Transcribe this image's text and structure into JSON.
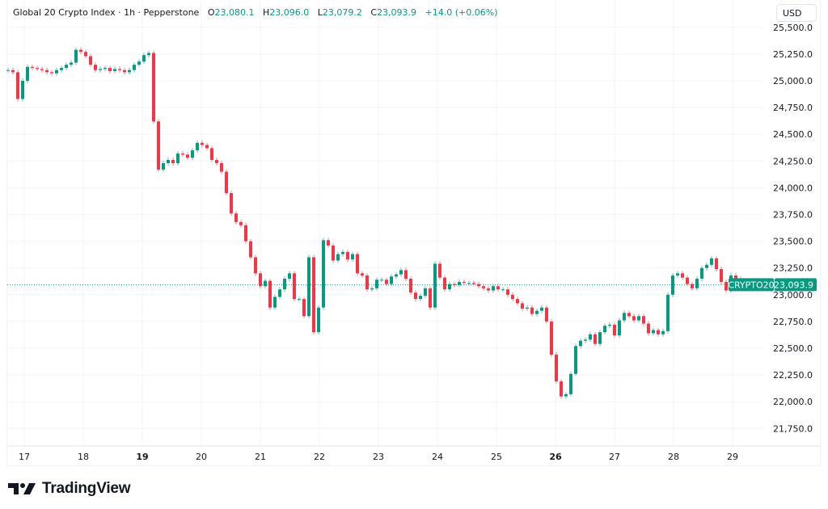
{
  "header": {
    "symbol_title": "Global 20 Crypto Index · 1h · Pepperstone",
    "open_label": "O",
    "open": "23,080.1",
    "high_label": "H",
    "high": "23,096.0",
    "low_label": "L",
    "low": "23,079.2",
    "close_label": "C",
    "close": "23,093.9",
    "change": "+14.0 (+0.06%)"
  },
  "currency_button": "USD",
  "last_price_tag": {
    "symbol": "CRYPTO20",
    "price": "23,093.9",
    "value": 23093.9
  },
  "logo": {
    "text": "TradingView"
  },
  "colors": {
    "up": "#089981",
    "down": "#f23645",
    "grid": "#f0f3fa",
    "text": "#131722"
  },
  "chart_data": {
    "type": "candlestick",
    "interval": "1h",
    "ylim": [
      21600,
      25520
    ],
    "y_ticks": [
      25500,
      25250,
      25000,
      24750,
      24500,
      24250,
      24000,
      23750,
      23500,
      23250,
      23000,
      22750,
      22500,
      22250,
      22000,
      21750
    ],
    "y_tick_labels": [
      "25,500.0",
      "25,250.0",
      "25,000.0",
      "24,750.0",
      "24,500.0",
      "24,250.0",
      "24,000.0",
      "23,750.0",
      "23,500.0",
      "23,250.0",
      "23,000.0",
      "22,750.0",
      "22,500.0",
      "22,250.0",
      "22,000.0",
      "21,750.0"
    ],
    "x_ticks": [
      17,
      18,
      19,
      20,
      21,
      22,
      23,
      24,
      25,
      26,
      27,
      28,
      29
    ],
    "x_tick_labels": [
      "17",
      "18",
      "19",
      "20",
      "21",
      "22",
      "23",
      "24",
      "25",
      "26",
      "27",
      "28",
      "29"
    ],
    "x_bold_ticks": [
      19,
      26
    ],
    "grid": true,
    "closes": [
      25100,
      25080,
      24830,
      25000,
      25130,
      25120,
      25110,
      25100,
      25080,
      25070,
      25100,
      25120,
      25150,
      25170,
      25290,
      25270,
      25230,
      25150,
      25100,
      25110,
      25120,
      25090,
      25110,
      25100,
      25080,
      25100,
      25150,
      25180,
      25240,
      25260,
      24620,
      24170,
      24230,
      24260,
      24230,
      24320,
      24310,
      24280,
      24350,
      24420,
      24400,
      24370,
      24260,
      24230,
      24150,
      23950,
      23760,
      23680,
      23650,
      23500,
      23350,
      23200,
      23080,
      23130,
      22880,
      22980,
      23050,
      23150,
      23200,
      22960,
      22960,
      22800,
      23350,
      22650,
      22880,
      23510,
      23460,
      23320,
      23380,
      23400,
      23330,
      23380,
      23200,
      23180,
      23050,
      23060,
      23140,
      23140,
      23100,
      23170,
      23190,
      23230,
      23150,
      23020,
      22960,
      22990,
      23060,
      22880,
      23290,
      23160,
      23050,
      23100,
      23090,
      23120,
      23110,
      23110,
      23100,
      23080,
      23060,
      23040,
      23080,
      23050,
      23050,
      23000,
      22960,
      22920,
      22870,
      22880,
      22820,
      22850,
      22880,
      22750,
      22440,
      22190,
      22050,
      22070,
      22260,
      22520,
      22570,
      22580,
      22630,
      22540,
      22650,
      22710,
      22720,
      22620,
      22760,
      22830,
      22800,
      22760,
      22800,
      22730,
      22640,
      22670,
      22630,
      22660,
      23000,
      23180,
      23200,
      23160,
      23100,
      23060,
      23150,
      23250,
      23280,
      23340,
      23240,
      23120,
      23040,
      23180,
      23150,
      23130,
      23094
    ]
  }
}
